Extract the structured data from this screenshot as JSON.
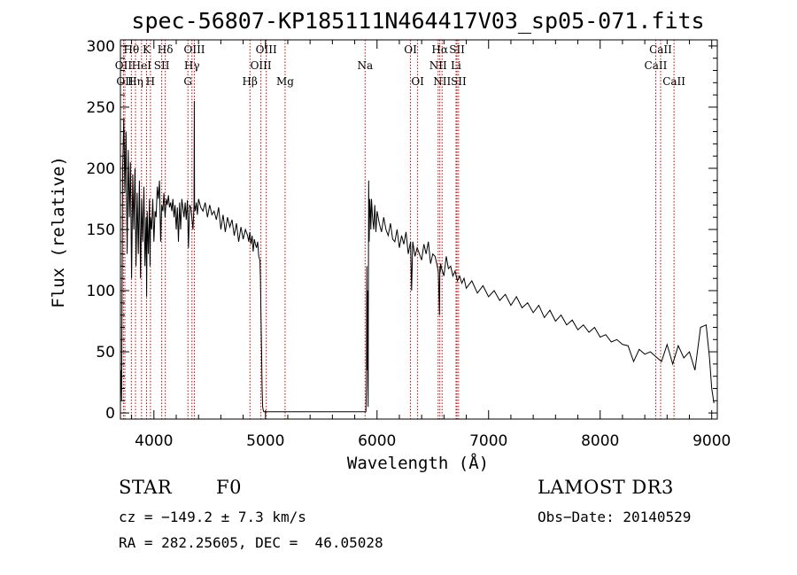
{
  "chart_data": {
    "type": "line",
    "title": "spec-56807-KP185111N464417V03_sp05-071.fits",
    "xlabel": "Wavelength (Å)",
    "ylabel": "Flux (relative)",
    "xlim": [
      3700,
      9050
    ],
    "ylim": [
      -5,
      305
    ],
    "x_ticks": [
      4000,
      5000,
      6000,
      7000,
      8000,
      9000
    ],
    "y_ticks": [
      0,
      50,
      100,
      150,
      200,
      250,
      300
    ],
    "x_tick_labels": [
      "4000",
      "5000",
      "6000",
      "7000",
      "8000",
      "9000"
    ],
    "y_tick_labels": [
      "0",
      "50",
      "100",
      "150",
      "200",
      "250",
      "300"
    ],
    "spectrum": {
      "x": [
        3700,
        3705,
        3710,
        3720,
        3730,
        3740,
        3750,
        3760,
        3770,
        3780,
        3790,
        3800,
        3810,
        3820,
        3830,
        3840,
        3850,
        3860,
        3870,
        3880,
        3890,
        3900,
        3910,
        3920,
        3930,
        3935,
        3940,
        3950,
        3960,
        3965,
        3970,
        3980,
        3990,
        4000,
        4010,
        4020,
        4030,
        4040,
        4050,
        4060,
        4070,
        4080,
        4090,
        4100,
        4110,
        4120,
        4130,
        4140,
        4150,
        4160,
        4170,
        4180,
        4190,
        4200,
        4210,
        4220,
        4230,
        4240,
        4250,
        4260,
        4270,
        4280,
        4290,
        4300,
        4310,
        4320,
        4330,
        4340,
        4350,
        4360,
        4362,
        4364,
        4370,
        4380,
        4390,
        4400,
        4420,
        4440,
        4460,
        4480,
        4500,
        4520,
        4540,
        4560,
        4580,
        4600,
        4620,
        4640,
        4660,
        4680,
        4700,
        4720,
        4740,
        4760,
        4780,
        4800,
        4820,
        4840,
        4850,
        4860,
        4870,
        4880,
        4890,
        4900,
        4910,
        4920,
        4930,
        4940,
        4950,
        4955,
        4960,
        4965,
        4970,
        4975,
        4980,
        4985,
        4990,
        4995,
        5000,
        5900,
        5905,
        5908,
        5910,
        5915,
        5920,
        5925,
        5930,
        5935,
        5940,
        5945,
        5950,
        5960,
        5970,
        5980,
        5990,
        6000,
        6020,
        6040,
        6060,
        6080,
        6100,
        6120,
        6140,
        6160,
        6180,
        6200,
        6220,
        6240,
        6260,
        6280,
        6300,
        6310,
        6320,
        6340,
        6360,
        6380,
        6400,
        6420,
        6440,
        6460,
        6480,
        6500,
        6520,
        6540,
        6550,
        6560,
        6563,
        6566,
        6570,
        6580,
        6600,
        6620,
        6640,
        6660,
        6680,
        6700,
        6720,
        6740,
        6760,
        6780,
        6800,
        6850,
        6900,
        6950,
        7000,
        7050,
        7100,
        7150,
        7200,
        7250,
        7300,
        7350,
        7400,
        7450,
        7500,
        7550,
        7600,
        7650,
        7700,
        7750,
        7800,
        7850,
        7900,
        7950,
        8000,
        8050,
        8100,
        8150,
        8200,
        8250,
        8300,
        8350,
        8400,
        8450,
        8500,
        8550,
        8600,
        8650,
        8700,
        8750,
        8800,
        8850,
        8900,
        8950,
        8980,
        9000,
        9020
      ],
      "y": [
        20,
        35,
        10,
        200,
        240,
        180,
        230,
        130,
        215,
        160,
        205,
        110,
        195,
        150,
        200,
        120,
        180,
        130,
        190,
        110,
        175,
        140,
        185,
        120,
        160,
        95,
        165,
        130,
        175,
        120,
        160,
        150,
        175,
        140,
        165,
        160,
        185,
        175,
        190,
        140,
        170,
        165,
        180,
        160,
        175,
        170,
        178,
        168,
        172,
        165,
        175,
        160,
        170,
        150,
        168,
        140,
        172,
        150,
        175,
        168,
        160,
        172,
        158,
        174,
        135,
        170,
        168,
        160,
        150,
        170,
        255,
        170,
        165,
        172,
        162,
        175,
        168,
        165,
        172,
        160,
        170,
        162,
        165,
        158,
        168,
        150,
        162,
        148,
        160,
        152,
        158,
        145,
        155,
        140,
        152,
        142,
        150,
        145,
        140,
        148,
        138,
        145,
        132,
        142,
        138,
        135,
        140,
        128,
        125,
        110,
        80,
        50,
        20,
        5,
        2,
        1,
        1,
        1,
        1,
        1,
        22,
        120,
        35,
        100,
        5,
        190,
        140,
        175,
        165,
        150,
        175,
        160,
        150,
        170,
        148,
        165,
        155,
        148,
        160,
        150,
        145,
        155,
        142,
        140,
        150,
        135,
        145,
        138,
        148,
        130,
        140,
        100,
        140,
        128,
        135,
        130,
        125,
        138,
        130,
        140,
        122,
        130,
        128,
        120,
        115,
        80,
        120,
        115,
        122,
        118,
        112,
        128,
        118,
        120,
        112,
        116,
        108,
        112,
        106,
        110,
        102,
        108,
        98,
        104,
        95,
        100,
        92,
        97,
        88,
        95,
        86,
        90,
        82,
        88,
        78,
        84,
        75,
        80,
        72,
        76,
        68,
        72,
        66,
        70,
        62,
        64,
        58,
        60,
        56,
        55,
        42,
        52,
        48,
        50,
        46,
        42,
        56,
        40,
        55,
        45,
        50,
        35,
        70,
        72,
        45,
        20,
        8
      ]
    },
    "emission_lines": [
      {
        "label": "Hθ",
        "x": 3798,
        "row": 0
      },
      {
        "label": "K",
        "x": 3934,
        "row": 0
      },
      {
        "label": "Hδ",
        "x": 4102,
        "row": 0
      },
      {
        "label": "OIII",
        "x": 4363,
        "row": 0
      },
      {
        "label": "OII",
        "x": 3727,
        "row": 1
      },
      {
        "label": "HeI",
        "x": 3889,
        "row": 1
      },
      {
        "label": "SII",
        "x": 4070,
        "row": 1
      },
      {
        "label": "Hγ",
        "x": 4341,
        "row": 1
      },
      {
        "label": "OII",
        "x": 3740,
        "row": 2
      },
      {
        "label": "Hη",
        "x": 3835,
        "row": 2
      },
      {
        "label": "H",
        "x": 3969,
        "row": 2
      },
      {
        "label": "G",
        "x": 4305,
        "row": 2
      },
      {
        "label": "OIII",
        "x": 5007,
        "row": 0
      },
      {
        "label": "OIII",
        "x": 4959,
        "row": 1
      },
      {
        "label": "Hβ",
        "x": 4861,
        "row": 2
      },
      {
        "label": "Mg",
        "x": 5176,
        "row": 2
      },
      {
        "label": "Na",
        "x": 5893,
        "row": 1
      },
      {
        "label": "OI",
        "x": 6300,
        "row": 0
      },
      {
        "label": "OI",
        "x": 6364,
        "row": 2
      },
      {
        "label": "Hα",
        "x": 6563,
        "row": 0
      },
      {
        "label": "SII",
        "x": 6717,
        "row": 0
      },
      {
        "label": "NII",
        "x": 6548,
        "row": 1
      },
      {
        "label": "Li",
        "x": 6708,
        "row": 1
      },
      {
        "label": "NII",
        "x": 6583,
        "row": 2
      },
      {
        "label": "SII",
        "x": 6731,
        "row": 2
      },
      {
        "label": "CaII",
        "x": 8542,
        "row": 0
      },
      {
        "label": "CaII",
        "x": 8498,
        "row": 1
      },
      {
        "label": "CaII",
        "x": 8662,
        "row": 2
      }
    ]
  },
  "info": {
    "class": "STAR",
    "subclass": "F0",
    "survey": "LAMOST DR3",
    "cz": "cz = −149.2 ± 7.3 km/s",
    "obs_date": "Obs−Date: 20140529",
    "radec": "RA = 282.25605, DEC =  46.05028"
  },
  "colors": {
    "spectrum": "#000000",
    "line_marker": "#cc0000",
    "axes": "#000000"
  }
}
